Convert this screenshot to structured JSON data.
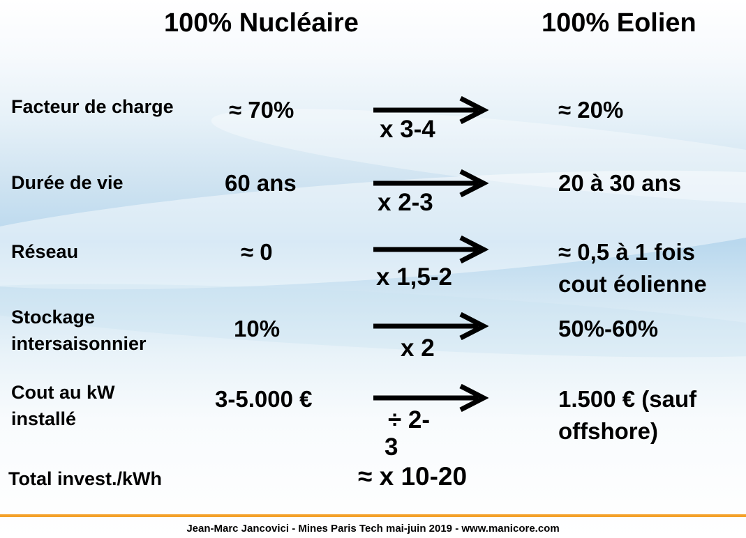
{
  "slide": {
    "header_left": "100% Nucléaire",
    "header_right": "100% Eolien",
    "rows": [
      {
        "label": "Facteur de charge",
        "nuclear": "≈ 70%",
        "factor": "x 3-4",
        "wind": "≈ 20%"
      },
      {
        "label": "Durée de vie",
        "nuclear": "60 ans",
        "factor": "x 2-3",
        "wind": "20 à 30 ans"
      },
      {
        "label": "Réseau",
        "nuclear": "≈ 0",
        "factor": "x 1,5-2",
        "wind_line1": "≈ 0,5 à 1 fois",
        "wind_line2": "cout éolienne"
      },
      {
        "label_line1": "Stockage",
        "label_line2": "intersaisonnier",
        "nuclear": "10%",
        "factor": "x 2",
        "wind": "50%-60%"
      },
      {
        "label_line1": "Cout au kW",
        "label_line2": "installé",
        "nuclear": "3-5.000 €",
        "factor_line1": "÷ 2-",
        "factor_line2": "3",
        "wind_line1": "1.500 € (sauf",
        "wind_line2": "offshore)"
      }
    ],
    "total_label": "Total invest./kWh",
    "total_value": "≈ x 10-20",
    "footer": "Jean-Marc Jancovici - Mines Paris Tech mai-juin 2019 - www.manicore.com",
    "colors": {
      "footer_rule": "#f4a12a",
      "background_blue": "#b9d8ee"
    }
  }
}
